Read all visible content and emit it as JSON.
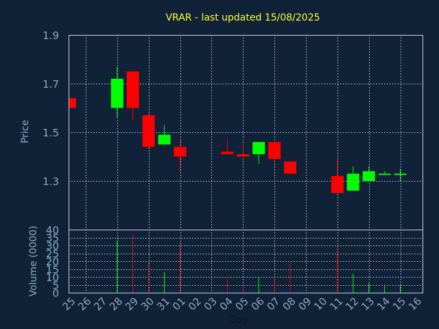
{
  "chart_data": {
    "type": "candlestick",
    "title": "VRAR - last updated 15/08/2025",
    "xlabel": "Day",
    "ylabel": "Price",
    "volume_label": "Volume (0000)",
    "ylim": [
      1.1,
      1.9
    ],
    "y_ticks": [
      1.3,
      1.5,
      1.7,
      1.9
    ],
    "volume_ylim": [
      0,
      40
    ],
    "volume_ticks": [
      0,
      5,
      10,
      15,
      20,
      25,
      30,
      35,
      40
    ],
    "grid": true,
    "colors": {
      "up": "#00ff00",
      "down": "#ff0000",
      "title": "#ffff33",
      "axis_text": "#8ea9c4",
      "background": "#0f2237"
    },
    "x_tick_labels": [
      "25",
      "26",
      "27",
      "28",
      "29",
      "30",
      "31",
      "01",
      "02",
      "03",
      "04",
      "05",
      "06",
      "07",
      "08",
      "09",
      "10",
      "11",
      "12",
      "13",
      "14",
      "15",
      "16"
    ],
    "candles": [
      {
        "day": "25",
        "open": 1.64,
        "high": 1.64,
        "low": 1.6,
        "close": 1.6,
        "volume": 0
      },
      {
        "day": "28",
        "open": 1.6,
        "high": 1.77,
        "low": 1.56,
        "close": 1.72,
        "volume": 33
      },
      {
        "day": "29",
        "open": 1.75,
        "high": 1.75,
        "low": 1.55,
        "close": 1.6,
        "volume": 37
      },
      {
        "day": "30",
        "open": 1.57,
        "high": 1.58,
        "low": 1.43,
        "close": 1.44,
        "volume": 20
      },
      {
        "day": "31",
        "open": 1.45,
        "high": 1.53,
        "low": 1.45,
        "close": 1.49,
        "volume": 13
      },
      {
        "day": "01",
        "open": 1.44,
        "high": 1.47,
        "low": 1.34,
        "close": 1.4,
        "volume": 32
      },
      {
        "day": "04",
        "open": 1.42,
        "high": 1.47,
        "low": 1.41,
        "close": 1.41,
        "volume": 9
      },
      {
        "day": "05",
        "open": 1.41,
        "high": 1.45,
        "low": 1.4,
        "close": 1.4,
        "volume": 5
      },
      {
        "day": "06",
        "open": 1.41,
        "high": 1.46,
        "low": 1.37,
        "close": 1.46,
        "volume": 10
      },
      {
        "day": "07",
        "open": 1.46,
        "high": 1.46,
        "low": 1.38,
        "close": 1.39,
        "volume": 9
      },
      {
        "day": "08",
        "open": 1.38,
        "high": 1.38,
        "low": 1.33,
        "close": 1.33,
        "volume": 19
      },
      {
        "day": "11",
        "open": 1.32,
        "high": 1.39,
        "low": 1.25,
        "close": 1.25,
        "volume": 28
      },
      {
        "day": "12",
        "open": 1.26,
        "high": 1.36,
        "low": 1.26,
        "close": 1.33,
        "volume": 12
      },
      {
        "day": "13",
        "open": 1.3,
        "high": 1.36,
        "low": 1.3,
        "close": 1.34,
        "volume": 6
      },
      {
        "day": "14",
        "open": 1.33,
        "high": 1.34,
        "low": 1.33,
        "close": 1.33,
        "volume": 5
      },
      {
        "day": "15",
        "open": 1.33,
        "high": 1.35,
        "low": 1.3,
        "close": 1.33,
        "volume": 5
      }
    ]
  }
}
